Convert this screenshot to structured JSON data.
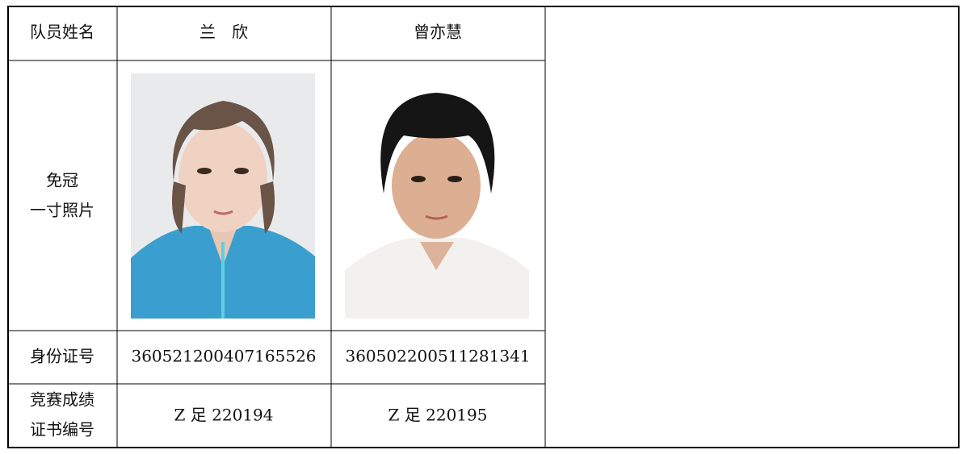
{
  "table": {
    "rows": [
      [
        "队员姓名",
        "兰　欣",
        "曾亦慧"
      ],
      [
        "身份证号",
        "360521200407165526",
        "360502200511281341"
      ]
    ],
    "photo_label": [
      "免冠",
      "一寸照片"
    ],
    "cert_label": [
      "竞赛成绩",
      "证书编号"
    ],
    "cert_numbers": [
      "Z 足 220194",
      "Z 足 220195"
    ]
  }
}
